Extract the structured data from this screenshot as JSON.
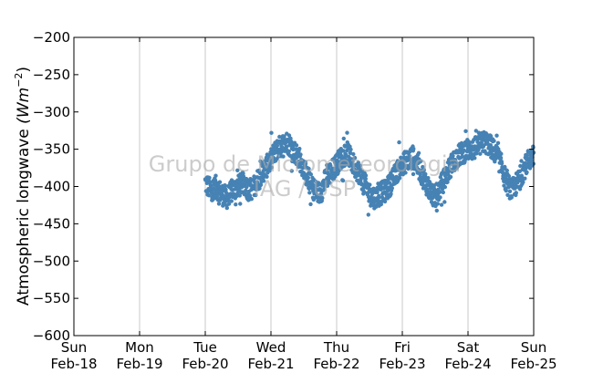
{
  "chart_data": {
    "type": "scatter",
    "title": "",
    "ylabel_text": "Atmospheric longwave ",
    "ylabel_unit_base": "(Wm",
    "ylabel_unit_exp": "−2",
    "ylabel_unit_close": ")",
    "ylim": [
      -600,
      -200
    ],
    "yticks": [
      -200,
      -250,
      -300,
      -350,
      -400,
      -450,
      -500,
      -550,
      -600
    ],
    "ytick_labels": [
      "−200",
      "−250",
      "−300",
      "−350",
      "−400",
      "−450",
      "−500",
      "−550",
      "−600"
    ],
    "xlim": [
      "2014-02-18",
      "2014-02-25"
    ],
    "xticks": [
      {
        "day": "Sun",
        "date": "Feb-18"
      },
      {
        "day": "Mon",
        "date": "Feb-19"
      },
      {
        "day": "Tue",
        "date": "Feb-20"
      },
      {
        "day": "Wed",
        "date": "Feb-21"
      },
      {
        "day": "Thu",
        "date": "Feb-22"
      },
      {
        "day": "Fri",
        "date": "Feb-23"
      },
      {
        "day": "Sat",
        "date": "Feb-24"
      },
      {
        "day": "Sun",
        "date": "Feb-25"
      }
    ],
    "grid": "vertical",
    "marker_color": "#4682b4",
    "watermark_line1": "Grupo de Micrometeorologia",
    "watermark_line2": "IAG / USP",
    "series": [
      {
        "x": [
          "2014-02-20 00:00",
          "2014-02-20 02:00",
          "2014-02-20 04:00",
          "2014-02-20 06:00",
          "2014-02-20 08:00",
          "2014-02-20 10:00",
          "2014-02-20 12:00",
          "2014-02-20 14:00",
          "2014-02-20 16:00",
          "2014-02-20 18:00",
          "2014-02-20 20:00",
          "2014-02-20 22:00",
          "2014-02-21 00:00",
          "2014-02-21 02:00",
          "2014-02-21 04:00",
          "2014-02-21 06:00",
          "2014-02-21 08:00",
          "2014-02-21 10:00",
          "2014-02-21 12:00",
          "2014-02-21 14:00",
          "2014-02-21 16:00",
          "2014-02-21 18:00",
          "2014-02-21 20:00",
          "2014-02-21 22:00",
          "2014-02-22 00:00",
          "2014-02-22 02:00",
          "2014-02-22 04:00",
          "2014-02-22 06:00",
          "2014-02-22 08:00",
          "2014-02-22 10:00",
          "2014-02-22 12:00",
          "2014-02-22 14:00",
          "2014-02-22 16:00",
          "2014-02-22 18:00",
          "2014-02-22 20:00",
          "2014-02-22 22:00",
          "2014-02-23 00:00",
          "2014-02-23 02:00",
          "2014-02-23 04:00",
          "2014-02-23 06:00",
          "2014-02-23 08:00",
          "2014-02-23 10:00",
          "2014-02-23 12:00",
          "2014-02-23 14:00",
          "2014-02-23 16:00",
          "2014-02-23 18:00",
          "2014-02-23 20:00",
          "2014-02-23 22:00",
          "2014-02-24 00:00",
          "2014-02-24 02:00",
          "2014-02-24 04:00",
          "2014-02-24 06:00",
          "2014-02-24 08:00",
          "2014-02-24 10:00",
          "2014-02-24 12:00",
          "2014-02-24 14:00",
          "2014-02-24 16:00",
          "2014-02-24 18:00",
          "2014-02-24 20:00",
          "2014-02-24 22:00",
          "2014-02-25 00:00"
        ],
        "y": [
          -395,
          -405,
          -400,
          -410,
          -415,
          -405,
          -400,
          -395,
          -405,
          -400,
          -385,
          -375,
          -365,
          -350,
          -345,
          -340,
          -350,
          -360,
          -375,
          -395,
          -405,
          -410,
          -390,
          -380,
          -370,
          -360,
          -355,
          -370,
          -380,
          -395,
          -410,
          -415,
          -410,
          -405,
          -395,
          -380,
          -370,
          -365,
          -360,
          -375,
          -390,
          -405,
          -415,
          -400,
          -385,
          -370,
          -360,
          -355,
          -350,
          -350,
          -345,
          -340,
          -345,
          -355,
          -370,
          -395,
          -405,
          -395,
          -380,
          -365,
          -360
        ]
      }
    ]
  }
}
